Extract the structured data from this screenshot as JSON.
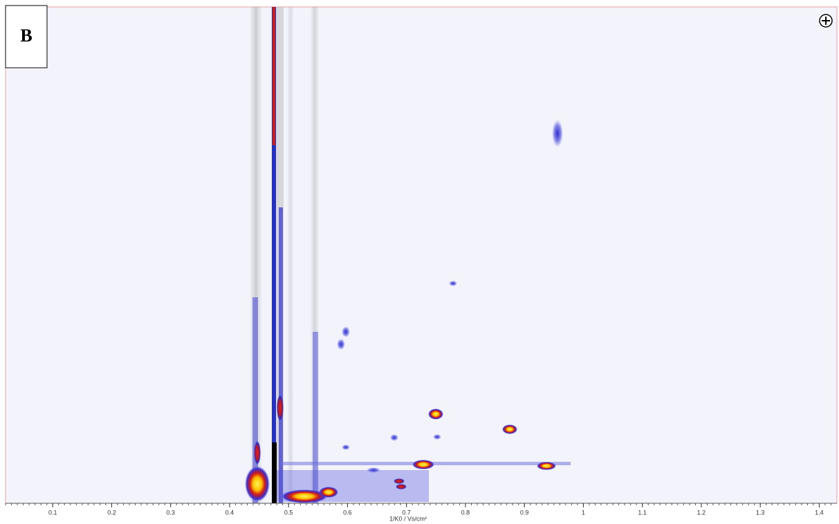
{
  "panel_label": "B",
  "chart_data": {
    "type": "heatmap",
    "xlabel": "1/K0 / Vs/cm²",
    "xlim": [
      0.02,
      1.43
    ],
    "xticks": [
      0.1,
      0.2,
      0.3,
      0.4,
      0.5,
      0.6,
      0.7,
      0.8,
      0.9,
      1,
      1.1,
      1.2,
      1.3,
      1.4
    ]
  }
}
